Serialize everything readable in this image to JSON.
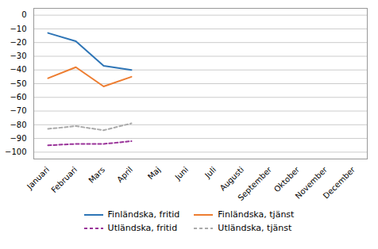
{
  "chart_data": {
    "type": "line",
    "categories": [
      "Januari",
      "Februari",
      "Mars",
      "April",
      "Maj",
      "Juni",
      "Juli",
      "Augusti",
      "September",
      "Oktober",
      "November",
      "December"
    ],
    "series": [
      {
        "name": "Finländska, fritid",
        "color": "#2E75B6",
        "line_style": "solid",
        "values": [
          -13,
          -19,
          -37,
          -40,
          null,
          null,
          null,
          null,
          null,
          null,
          null,
          null
        ]
      },
      {
        "name": "Finländska, tjänst",
        "color": "#ED7D31",
        "line_style": "solid",
        "values": [
          -46,
          -38,
          -52,
          -45,
          null,
          null,
          null,
          null,
          null,
          null,
          null,
          null
        ]
      },
      {
        "name": "Utländska, fritid",
        "color": "#993399",
        "line_style": "dashed",
        "values": [
          -95,
          -94,
          -94,
          -92,
          null,
          null,
          null,
          null,
          null,
          null,
          null,
          null
        ]
      },
      {
        "name": "Utländska, tjänst",
        "color": "#AAAAAA",
        "line_style": "dashed",
        "values": [
          -83,
          -81,
          -84,
          -79,
          null,
          null,
          null,
          null,
          null,
          null,
          null,
          null
        ]
      }
    ],
    "ylim": [
      -105,
      5
    ],
    "yticks": [
      0,
      -10,
      -20,
      -30,
      -40,
      -50,
      -60,
      -70,
      -80,
      -90,
      -100
    ],
    "grid": true,
    "legend": "bottom"
  }
}
